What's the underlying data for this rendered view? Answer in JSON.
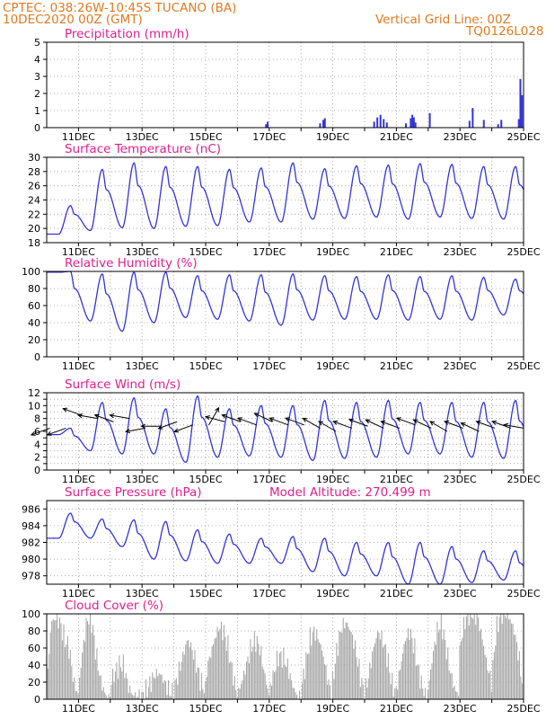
{
  "header": {
    "line1": "CPTEC:   038:26W-10:45S   TUCANO (BA)",
    "line2": "10DEC2020 00Z (GMT)",
    "grid_note": "Vertical Grid Line: 00Z",
    "run_id": "TQ0126L028",
    "text_color": "#e07a20"
  },
  "colors": {
    "series": "#3333dd",
    "title": "#e0208c",
    "cloud": "#a6a6a6",
    "grid": "#999999"
  },
  "chart_data": [
    {
      "id": "precip",
      "type": "bar",
      "title": "Precipitation (mm/h)",
      "ylim": [
        0,
        5
      ],
      "yticks": [
        0,
        1,
        2,
        3,
        4,
        5
      ],
      "xlim": [
        10,
        25
      ],
      "xticks": [
        "11DEC",
        "13DEC",
        "15DEC",
        "17DEC",
        "19DEC",
        "21DEC",
        "23DEC",
        "25DEC"
      ],
      "x": [
        16.9,
        16.95,
        18.6,
        18.7,
        18.75,
        20.3,
        20.4,
        20.5,
        20.6,
        20.7,
        21.3,
        21.45,
        21.5,
        21.55,
        21.6,
        22.05,
        23.3,
        23.4,
        23.75,
        24.2,
        24.3,
        24.85,
        24.9,
        24.95
      ],
      "values": [
        0.2,
        0.35,
        0.25,
        0.45,
        0.55,
        0.35,
        0.6,
        0.75,
        0.5,
        0.3,
        0.25,
        0.55,
        0.75,
        0.6,
        0.3,
        0.85,
        0.4,
        1.15,
        0.45,
        0.2,
        0.45,
        0.5,
        2.85,
        1.9
      ]
    },
    {
      "id": "temp",
      "type": "line",
      "title": "Surface Temperature (nC)",
      "ylim": [
        18,
        30
      ],
      "yticks": [
        18,
        20,
        22,
        24,
        26,
        28,
        30
      ],
      "xlim": [
        10,
        25
      ],
      "xticks": [
        "11DEC",
        "13DEC",
        "15DEC",
        "17DEC",
        "19DEC",
        "21DEC",
        "23DEC",
        "25DEC"
      ],
      "days": {
        "min": [
          19.2,
          19.7,
          20.1,
          20.0,
          20.3,
          20.4,
          20.9,
          20.9,
          21.3,
          21.4,
          21.6,
          21.3,
          21.6,
          21.4,
          21.3,
          21.3
        ],
        "max": [
          23.2,
          28.3,
          29.2,
          28.7,
          28.7,
          28.3,
          28.5,
          29.2,
          28.4,
          28.8,
          28.9,
          29.1,
          29.0,
          28.7,
          28.7,
          28.2
        ]
      },
      "end_value": 23.8
    },
    {
      "id": "rh",
      "type": "line",
      "title": "Relative Humidity (%)",
      "ylim": [
        0,
        100
      ],
      "yticks": [
        0,
        20,
        40,
        60,
        80,
        100
      ],
      "xlim": [
        10,
        25
      ],
      "xticks": [
        "11DEC",
        "13DEC",
        "15DEC",
        "17DEC",
        "19DEC",
        "21DEC",
        "23DEC",
        "25DEC"
      ],
      "days": {
        "min": [
          99,
          42,
          30,
          40,
          46,
          44,
          42,
          37,
          43,
          44,
          44,
          43,
          44,
          43,
          49,
          52
        ],
        "max": [
          100,
          97,
          99,
          99,
          95,
          96,
          96,
          97,
          95,
          94,
          96,
          94,
          95,
          93,
          91,
          87
        ]
      },
      "end_value": 79
    },
    {
      "id": "wind",
      "type": "line",
      "title": "Surface Wind (m/s)",
      "ylim": [
        0,
        12
      ],
      "yticks": [
        0,
        1,
        2,
        3,
        4,
        5,
        6,
        7,
        8,
        9,
        10,
        11,
        12
      ],
      "ytick_labels": [
        0,
        2,
        4,
        6,
        8,
        10,
        12
      ],
      "xlim": [
        10,
        25
      ],
      "xticks": [
        "11DEC",
        "13DEC",
        "15DEC",
        "17DEC",
        "19DEC",
        "21DEC",
        "23DEC",
        "25DEC"
      ],
      "days": {
        "min": [
          5.5,
          3.0,
          2.5,
          2.5,
          1.2,
          2.0,
          2.2,
          2.0,
          1.5,
          1.8,
          2.0,
          2.5,
          2.5,
          2.0,
          1.8,
          1.5
        ],
        "max": [
          6.5,
          10.5,
          11.2,
          9.5,
          11.5,
          9.5,
          10.0,
          10.0,
          10.8,
          10.5,
          10.8,
          10.5,
          10.5,
          10.5,
          10.8,
          11.5
        ]
      },
      "end_value": 5.0,
      "arrows": [
        [
          10.1,
          6.5,
          200
        ],
        [
          10.6,
          6.5,
          200
        ],
        [
          11.1,
          8.5,
          160
        ],
        [
          11.6,
          8.0,
          170
        ],
        [
          12.1,
          7.5,
          160
        ],
        [
          12.6,
          8.0,
          170
        ],
        [
          13.1,
          6.5,
          190
        ],
        [
          13.6,
          6.8,
          180
        ],
        [
          14.1,
          7.5,
          200
        ],
        [
          14.6,
          7.0,
          200
        ],
        [
          15.1,
          7.0,
          60
        ],
        [
          15.6,
          7.5,
          165
        ],
        [
          16.1,
          7.5,
          160
        ],
        [
          16.6,
          7.0,
          160
        ],
        [
          17.1,
          7.5,
          155
        ],
        [
          17.6,
          7.0,
          160
        ],
        [
          18.1,
          7.0,
          160
        ],
        [
          18.6,
          6.5,
          150
        ],
        [
          19.1,
          6.0,
          150
        ],
        [
          19.6,
          6.5,
          160
        ],
        [
          20.1,
          6.8,
          160
        ],
        [
          20.6,
          6.5,
          155
        ],
        [
          21.1,
          6.5,
          160
        ],
        [
          21.6,
          7.0,
          160
        ],
        [
          22.1,
          6.5,
          155
        ],
        [
          22.6,
          6.0,
          150
        ],
        [
          23.1,
          6.5,
          160
        ],
        [
          23.6,
          6.0,
          155
        ],
        [
          24.1,
          6.5,
          160
        ],
        [
          24.6,
          6.5,
          160
        ],
        [
          25.0,
          6.5,
          170
        ]
      ]
    },
    {
      "id": "pres",
      "type": "line",
      "title": "Surface Pressure (hPa)",
      "annotation": "Model Altitude: 270.499 m",
      "ylim": [
        977,
        987
      ],
      "yticks": [
        978,
        980,
        982,
        984,
        986
      ],
      "xlim": [
        10,
        25
      ],
      "xticks": [
        "11DEC",
        "13DEC",
        "15DEC",
        "17DEC",
        "19DEC",
        "21DEC",
        "23DEC",
        "25DEC"
      ],
      "days": {
        "min": [
          982.5,
          982.5,
          981.5,
          980.0,
          979.8,
          979.5,
          979.5,
          979.5,
          978.5,
          978.0,
          978.0,
          977.0,
          977.0,
          977.2,
          977.5,
          976.8
        ],
        "max": [
          985.5,
          984.8,
          984.7,
          984.5,
          983.5,
          983.0,
          982.5,
          982.7,
          982.5,
          982.0,
          982.0,
          982.0,
          981.5,
          981.0,
          981.0,
          980.0
        ]
      },
      "end_value": 980.0
    },
    {
      "id": "cloud",
      "type": "bar",
      "title": "Cloud Cover (%)",
      "ylim": [
        0,
        100
      ],
      "yticks": [
        0,
        20,
        40,
        60,
        80,
        100
      ],
      "xlim": [
        10,
        25
      ],
      "xticks": [
        "11DEC",
        "13DEC",
        "15DEC",
        "17DEC",
        "19DEC",
        "21DEC",
        "23DEC",
        "25DEC"
      ],
      "daily_envelope": [
        [
          5,
          90,
          95,
          90,
          70,
          60,
          20,
          5
        ],
        [
          10,
          60,
          95,
          90,
          50,
          20,
          5,
          2
        ],
        [
          20,
          30,
          40,
          40,
          15,
          5,
          5,
          2
        ],
        [
          5,
          10,
          20,
          30,
          30,
          20,
          10,
          5
        ],
        [
          10,
          30,
          50,
          70,
          60,
          40,
          20,
          10
        ],
        [
          30,
          50,
          70,
          85,
          80,
          60,
          30,
          5
        ],
        [
          5,
          20,
          40,
          60,
          70,
          60,
          30,
          5
        ],
        [
          10,
          30,
          50,
          50,
          40,
          20,
          5,
          2
        ],
        [
          10,
          40,
          70,
          80,
          70,
          50,
          20,
          5
        ],
        [
          20,
          60,
          85,
          90,
          80,
          60,
          30,
          5
        ],
        [
          5,
          30,
          60,
          80,
          70,
          50,
          20,
          5
        ],
        [
          10,
          40,
          70,
          80,
          60,
          30,
          10,
          2
        ],
        [
          10,
          50,
          80,
          90,
          60,
          30,
          10,
          5
        ],
        [
          60,
          90,
          100,
          100,
          95,
          70,
          40,
          20
        ],
        [
          20,
          80,
          100,
          100,
          95,
          80,
          50,
          10
        ]
      ]
    }
  ]
}
